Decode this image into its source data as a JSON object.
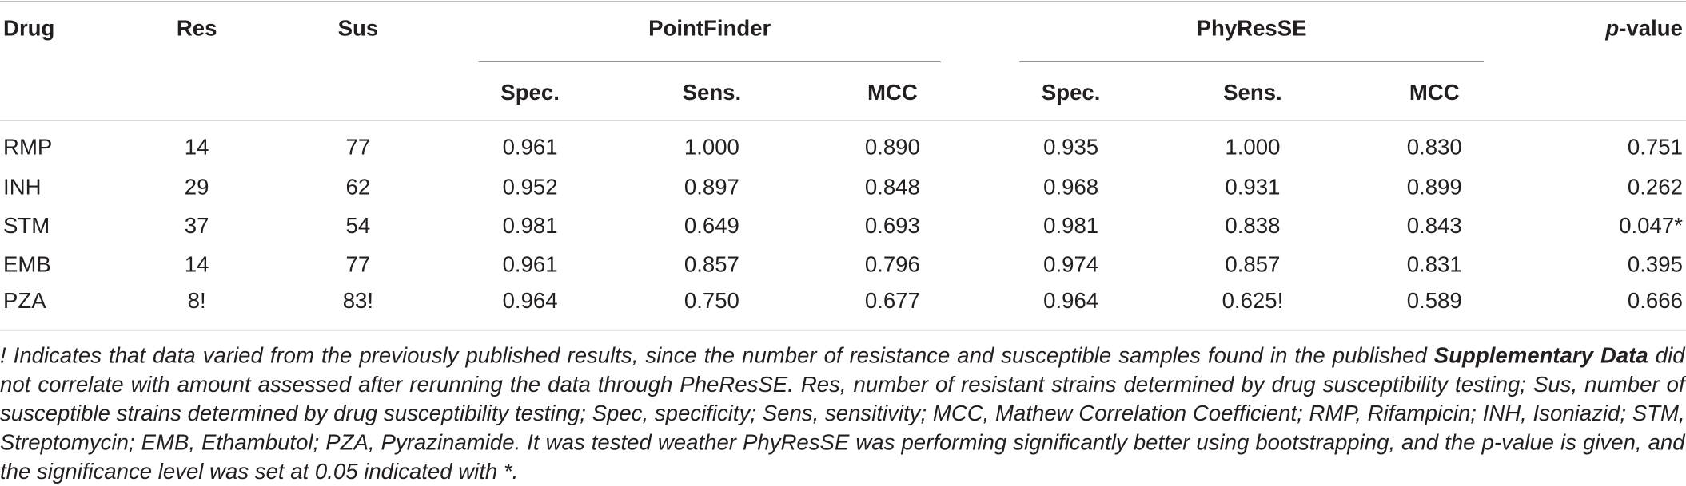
{
  "table": {
    "header": {
      "drug": "Drug",
      "res": "Res",
      "sus": "Sus",
      "groups": [
        "PointFinder",
        "PhyResSE"
      ],
      "pvalue_italic": "p",
      "pvalue_rest": "-value",
      "subheaders": [
        "Spec.",
        "Sens.",
        "MCC",
        "Spec.",
        "Sens.",
        "MCC"
      ]
    },
    "rows": [
      [
        "RMP",
        "14",
        "77",
        "0.961",
        "1.000",
        "0.890",
        "0.935",
        "1.000",
        "0.830",
        "0.751"
      ],
      [
        "INH",
        "29",
        "62",
        "0.952",
        "0.897",
        "0.848",
        "0.968",
        "0.931",
        "0.899",
        "0.262"
      ],
      [
        "STM",
        "37",
        "54",
        "0.981",
        "0.649",
        "0.693",
        "0.981",
        "0.838",
        "0.843",
        "0.047*"
      ],
      [
        "EMB",
        "14",
        "77",
        "0.961",
        "0.857",
        "0.796",
        "0.974",
        "0.857",
        "0.831",
        "0.395"
      ],
      [
        "PZA",
        "8!",
        "83!",
        "0.964",
        "0.750",
        "0.677",
        "0.964",
        "0.625!",
        "0.589",
        "0.666"
      ]
    ]
  },
  "footnote": {
    "before": "! Indicates that data varied from the previously published results, since the number of resistance and susceptible samples found in the published ",
    "emphasis": "Supplementary Data",
    "after": " did not correlate with amount assessed after rerunning the data through PheResSE. Res, number of resistant strains determined by drug susceptibility testing; Sus, number of susceptible strains determined by drug susceptibility testing; Spec, specificity; Sens, sensitivity; MCC, Mathew Correlation Coefficient; RMP, Rifampicin; INH, Isoniazid; STM, Streptomycin; EMB, Ethambutol; PZA, Pyrazinamide. It was tested weather PhyResSE was performing significantly better using bootstrapping, and the p-value is given, and the significance level was set at 0.05 indicated with *."
  }
}
